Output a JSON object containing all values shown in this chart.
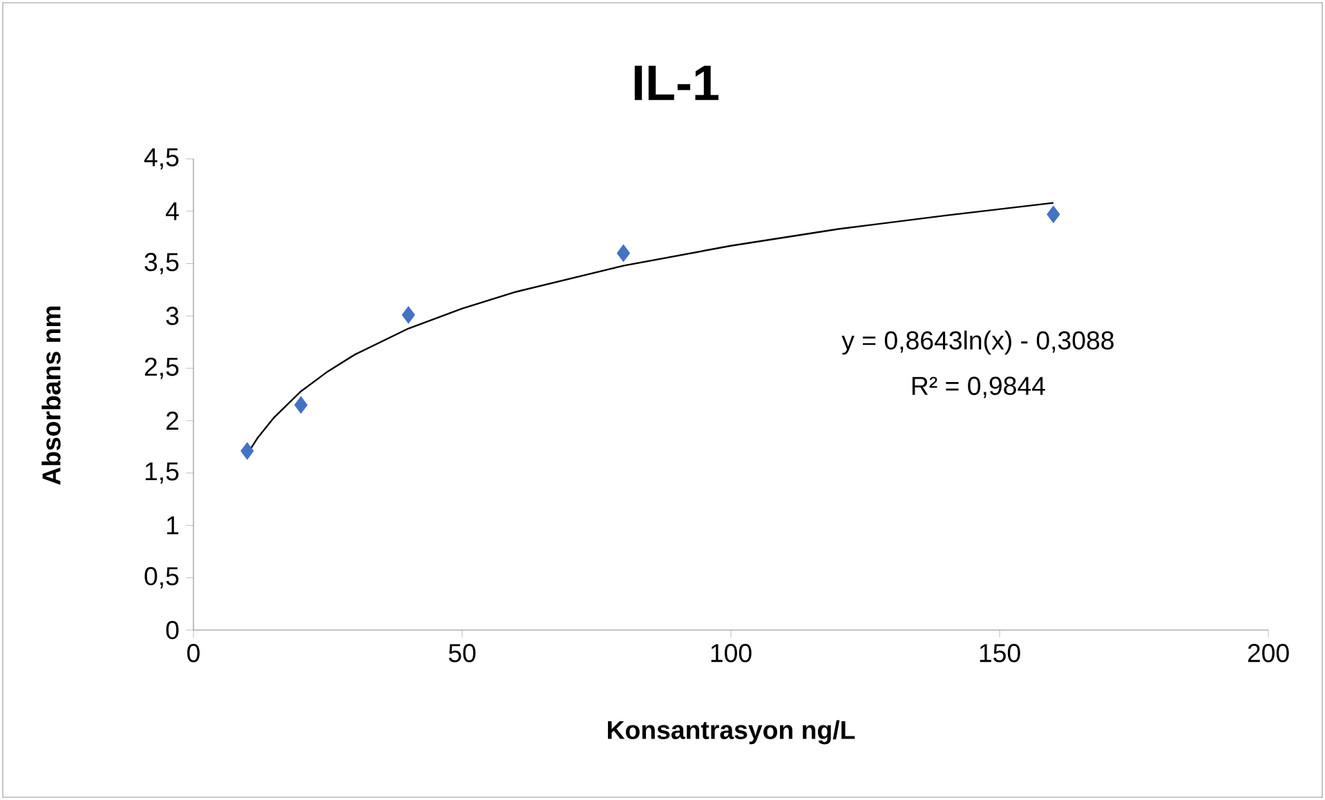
{
  "chart_data": {
    "type": "scatter",
    "title": "IL-1",
    "xlabel": "Konsantrasyon ng/L",
    "ylabel": "Absorbans nm",
    "annotations": [
      "y = 0,8643ln(x) - 0,3088",
      "R² = 0,9844"
    ],
    "xlim": [
      0,
      200
    ],
    "xticks": [
      0,
      50,
      100,
      150,
      200
    ],
    "ylim": [
      0,
      4.5
    ],
    "yticks": [
      0,
      {
        "value": 0.5,
        "label": "0,5"
      },
      1,
      {
        "value": 1.5,
        "label": "1,5"
      },
      2,
      {
        "value": 2.5,
        "label": "2,5"
      },
      3,
      {
        "value": 3.5,
        "label": "3,5"
      },
      4,
      {
        "value": 4.5,
        "label": "4,5"
      }
    ],
    "series": [
      {
        "color": "#4472c4",
        "marker": "diamond",
        "x": [
          10,
          20,
          40,
          80,
          160
        ],
        "values": [
          1.71,
          2.15,
          3.01,
          3.6,
          3.97
        ]
      },
      {
        "type": "line",
        "color": "#000000",
        "marker": "none",
        "line_style": "solid",
        "x": [
          10,
          12,
          15,
          20,
          25,
          30,
          40,
          50,
          60,
          80,
          100,
          120,
          140,
          160
        ],
        "values": [
          1.68,
          1.84,
          2.03,
          2.28,
          2.47,
          2.63,
          2.88,
          3.07,
          3.23,
          3.48,
          3.67,
          3.83,
          3.96,
          4.08
        ]
      }
    ]
  }
}
